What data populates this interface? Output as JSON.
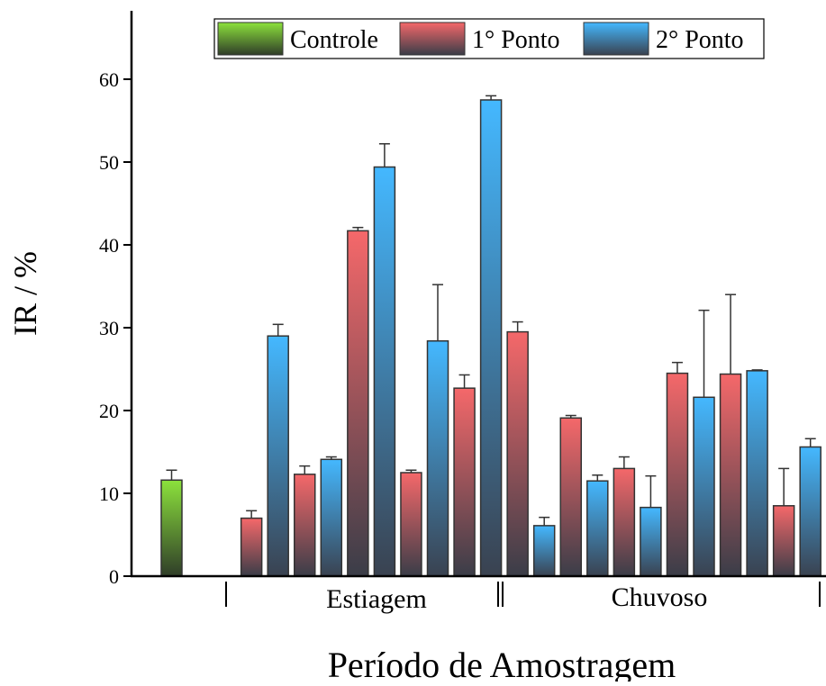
{
  "chart_data": {
    "type": "bar",
    "title": "",
    "xlabel": "Período de Amostragem",
    "ylabel": "IR / %",
    "ylim": [
      0,
      60
    ],
    "yticks": [
      0,
      10,
      20,
      30,
      40,
      50,
      60
    ],
    "grid": false,
    "legend_position": "top-center",
    "period_labels": [
      "Estiagem",
      "Chuvoso"
    ],
    "series": [
      {
        "name": "Controle",
        "color_top": "#8ce23c",
        "color_bottom": "#2f3d28"
      },
      {
        "name": "1° Ponto",
        "color_top": "#f5686a",
        "color_bottom": "#3a3d48"
      },
      {
        "name": "2° Ponto",
        "color_top": "#44b8ff",
        "color_bottom": "#3a4250"
      }
    ],
    "bars": [
      {
        "series": 0,
        "value": 11.6,
        "error": 1.2
      },
      {
        "series": 1,
        "value": 7.0,
        "error": 0.9
      },
      {
        "series": 2,
        "value": 29.0,
        "error": 1.4
      },
      {
        "series": 1,
        "value": 12.3,
        "error": 1.0
      },
      {
        "series": 2,
        "value": 14.1,
        "error": 0.3
      },
      {
        "series": 1,
        "value": 41.7,
        "error": 0.4
      },
      {
        "series": 2,
        "value": 49.4,
        "error": 2.8
      },
      {
        "series": 1,
        "value": 12.5,
        "error": 0.3
      },
      {
        "series": 2,
        "value": 28.4,
        "error": 6.8
      },
      {
        "series": 1,
        "value": 22.7,
        "error": 1.6
      },
      {
        "series": 2,
        "value": 57.5,
        "error": 0.5
      },
      {
        "series": 1,
        "value": 29.5,
        "error": 1.2
      },
      {
        "series": 2,
        "value": 6.1,
        "error": 1.0
      },
      {
        "series": 1,
        "value": 19.1,
        "error": 0.3
      },
      {
        "series": 2,
        "value": 11.5,
        "error": 0.7
      },
      {
        "series": 1,
        "value": 13.0,
        "error": 1.4
      },
      {
        "series": 2,
        "value": 8.3,
        "error": 3.8
      },
      {
        "series": 1,
        "value": 24.5,
        "error": 1.3
      },
      {
        "series": 2,
        "value": 21.6,
        "error": 10.5
      },
      {
        "series": 1,
        "value": 24.4,
        "error": 9.6
      },
      {
        "series": 2,
        "value": 24.8,
        "error": 0.1
      },
      {
        "series": 1,
        "value": 8.5,
        "error": 4.5
      },
      {
        "series": 2,
        "value": 15.6,
        "error": 1.0
      }
    ]
  }
}
